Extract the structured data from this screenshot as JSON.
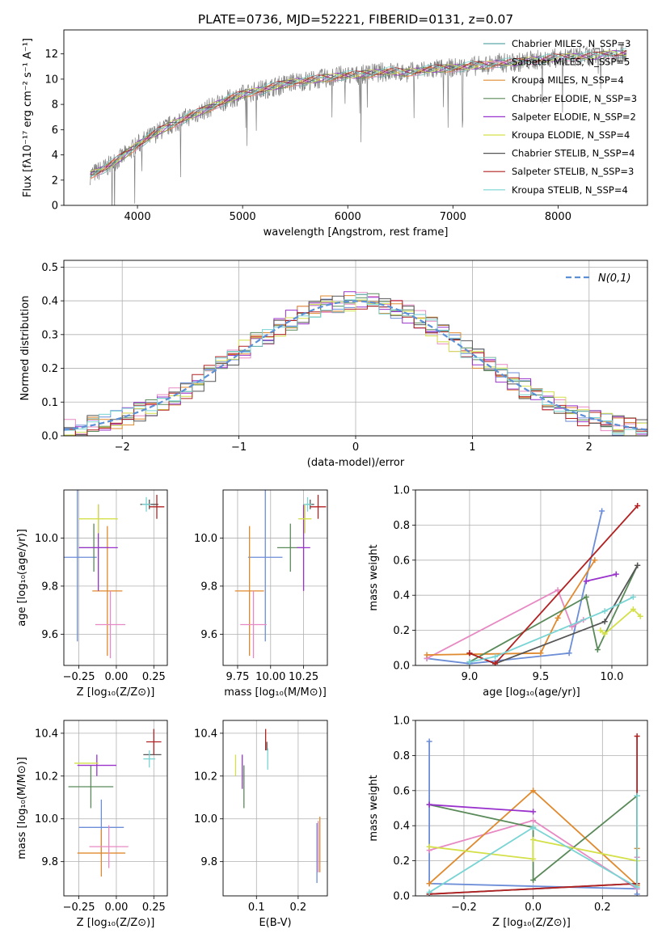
{
  "chart_data": [
    {
      "id": "spectrum",
      "type": "line",
      "title": "PLATE=0736, MJD=52221, FIBERID=0131, z=0.07",
      "xlabel": "wavelength [Angstrom, rest frame]",
      "ylabel": "Flux [fλ10⁻¹⁷ erg cm⁻² s⁻¹ A⁻¹]",
      "xlim": [
        3300,
        8850
      ],
      "ylim": [
        0,
        13.9
      ],
      "xticks": [
        4000,
        5000,
        6000,
        7000,
        8000
      ],
      "yticks": [
        0,
        2,
        4,
        6,
        8,
        10,
        12
      ],
      "legend_loc": "upper right",
      "observed_color": "#808080",
      "observed": {
        "x": [
          3550,
          3700,
          3850,
          4000,
          4150,
          4300,
          4450,
          4600,
          4750,
          4900,
          5050,
          5200,
          5350,
          5500,
          5650,
          5800,
          5950,
          6100,
          6250,
          6400,
          6550,
          6700,
          6850,
          7000,
          7150,
          7300,
          7450,
          7600,
          7750,
          7900,
          8050,
          8200,
          8350,
          8500,
          8650
        ],
        "y": [
          2.4,
          3.0,
          3.8,
          4.8,
          5.6,
          6.3,
          6.9,
          7.4,
          8.0,
          8.5,
          8.9,
          9.2,
          9.5,
          9.8,
          9.9,
          10.1,
          10.3,
          10.3,
          10.5,
          10.6,
          10.5,
          10.7,
          10.8,
          10.9,
          11.0,
          11.1,
          11.3,
          11.3,
          11.5,
          11.6,
          11.7,
          11.8,
          11.8,
          12.0,
          12.1
        ]
      },
      "series": [
        {
          "name": "Chabrier MILES, N_SSP=3",
          "color": "#5fa8a8"
        },
        {
          "name": "Salpeter MILES, N_SSP=5",
          "color": "#e78ac3"
        },
        {
          "name": "Kroupa MILES, N_SSP=4",
          "color": "#e08a2f"
        },
        {
          "name": "Chabrier ELODIE, N_SSP=3",
          "color": "#5a8a5a"
        },
        {
          "name": "Salpeter ELODIE, N_SSP=2",
          "color": "#9932cc"
        },
        {
          "name": "Kroupa ELODIE, N_SSP=4",
          "color": "#d4e04a"
        },
        {
          "name": "Chabrier STELIB, N_SSP=4",
          "color": "#555555"
        },
        {
          "name": "Salpeter STELIB, N_SSP=3",
          "color": "#b22222"
        },
        {
          "name": "Kroupa STELIB, N_SSP=4",
          "color": "#7ad4d4"
        }
      ]
    },
    {
      "id": "residuals",
      "type": "line",
      "xlabel": "(data-model)/error",
      "ylabel": "Normed distribution",
      "xlim": [
        -2.5,
        2.5
      ],
      "ylim": [
        0,
        0.52
      ],
      "xticks": [
        -2,
        -1,
        0,
        1,
        2
      ],
      "yticks": [
        0.0,
        0.1,
        0.2,
        0.3,
        0.4,
        0.5
      ],
      "grid": true,
      "legend": "N(0,1)",
      "legend_loc": "upper right",
      "normal_curve": {
        "mean": 0,
        "sigma": 1,
        "color": "#5b8fd6"
      },
      "hist_colors": [
        "#6c8ed8",
        "#e78ac3",
        "#e08a2f",
        "#5a8a5a",
        "#9932cc",
        "#d4e04a",
        "#555555",
        "#b22222",
        "#7ad4d4"
      ]
    },
    {
      "id": "z_age",
      "type": "scatter",
      "xlabel": "Z [log₁₀(Z/Z⊙)]",
      "ylabel": "age  [log₁₀(age/yr)]",
      "xlim": [
        -0.35,
        0.34
      ],
      "ylim": [
        9.47,
        10.2
      ],
      "xticks": [
        -0.25,
        0.0,
        0.25
      ],
      "yticks": [
        9.6,
        9.8,
        10.0
      ],
      "grid": true,
      "points": [
        {
          "x": -0.26,
          "y": 9.92,
          "xerr": 0.13,
          "yerr": 0.35,
          "color": "#6c8ed8"
        },
        {
          "x": -0.06,
          "y": 9.78,
          "xerr": 0.1,
          "yerr": 0.27,
          "color": "#e08a2f"
        },
        {
          "x": -0.04,
          "y": 9.64,
          "xerr": 0.1,
          "yerr": 0.14,
          "color": "#e78ac3"
        },
        {
          "x": -0.15,
          "y": 9.96,
          "xerr": 0.1,
          "yerr": 0.1,
          "color": "#5a8a5a"
        },
        {
          "x": -0.12,
          "y": 9.96,
          "xerr": 0.13,
          "yerr": 0.18,
          "color": "#9932cc"
        },
        {
          "x": -0.12,
          "y": 10.08,
          "xerr": 0.13,
          "yerr": 0.06,
          "color": "#d4e04a"
        },
        {
          "x": 0.22,
          "y": 10.14,
          "xerr": 0.06,
          "yerr": 0.02,
          "color": "#555555"
        },
        {
          "x": 0.27,
          "y": 10.13,
          "xerr": 0.05,
          "yerr": 0.05,
          "color": "#b22222"
        },
        {
          "x": 0.2,
          "y": 10.14,
          "xerr": 0.03,
          "yerr": 0.03,
          "color": "#7ad4d4"
        }
      ]
    },
    {
      "id": "mass_age",
      "type": "scatter",
      "xlabel": "mass [log₁₀(M/M⊙)]",
      "ylabel": "",
      "xlim": [
        9.64,
        10.43
      ],
      "ylim": [
        9.47,
        10.2
      ],
      "xticks": [
        9.75,
        10.0,
        10.25
      ],
      "xticklabels": [
        "9.75",
        "10.00",
        "10.25"
      ],
      "yticks": [
        9.6,
        9.8,
        10.0
      ],
      "grid": true,
      "points": [
        {
          "x": 9.96,
          "y": 9.92,
          "xerr": 0.13,
          "yerr": 0.35,
          "color": "#6c8ed8"
        },
        {
          "x": 9.84,
          "y": 9.78,
          "xerr": 0.11,
          "yerr": 0.27,
          "color": "#e08a2f"
        },
        {
          "x": 9.87,
          "y": 9.64,
          "xerr": 0.1,
          "yerr": 0.14,
          "color": "#e78ac3"
        },
        {
          "x": 10.15,
          "y": 9.96,
          "xerr": 0.1,
          "yerr": 0.1,
          "color": "#5a8a5a"
        },
        {
          "x": 10.25,
          "y": 9.96,
          "xerr": 0.05,
          "yerr": 0.18,
          "color": "#9932cc"
        },
        {
          "x": 10.26,
          "y": 10.08,
          "xerr": 0.05,
          "yerr": 0.06,
          "color": "#d4e04a"
        },
        {
          "x": 10.3,
          "y": 10.14,
          "xerr": 0.03,
          "yerr": 0.02,
          "color": "#555555"
        },
        {
          "x": 10.36,
          "y": 10.13,
          "xerr": 0.06,
          "yerr": 0.05,
          "color": "#b22222"
        },
        {
          "x": 10.28,
          "y": 10.14,
          "xerr": 0.03,
          "yerr": 0.03,
          "color": "#7ad4d4"
        }
      ]
    },
    {
      "id": "age_weight",
      "type": "line",
      "xlabel": "age  [log₁₀(age/yr)]",
      "ylabel": "mass weight",
      "xlim": [
        8.62,
        10.25
      ],
      "ylim": [
        0.0,
        1.0
      ],
      "xticks": [
        9.0,
        9.5,
        10.0
      ],
      "yticks": [
        0.0,
        0.2,
        0.4,
        0.6,
        0.8,
        1.0
      ],
      "grid": true,
      "series": [
        {
          "color": "#6c8ed8",
          "x": [
            8.7,
            9.0,
            9.7,
            9.93
          ],
          "y": [
            0.04,
            0.01,
            0.07,
            0.88
          ]
        },
        {
          "color": "#e78ac3",
          "x": [
            8.7,
            9.62,
            9.72,
            9.8
          ],
          "y": [
            0.04,
            0.43,
            0.22,
            0.26
          ]
        },
        {
          "color": "#e08a2f",
          "x": [
            8.7,
            9.5,
            9.62,
            9.88
          ],
          "y": [
            0.06,
            0.07,
            0.27,
            0.6
          ]
        },
        {
          "color": "#5a8a5a",
          "x": [
            9.0,
            9.82,
            9.9,
            10.18
          ],
          "y": [
            0.02,
            0.39,
            0.09,
            0.57
          ]
        },
        {
          "color": "#9932cc",
          "x": [
            9.82,
            10.03
          ],
          "y": [
            0.48,
            0.52
          ]
        },
        {
          "color": "#d4e04a",
          "x": [
            9.92,
            9.95,
            10.15,
            10.2
          ],
          "y": [
            0.2,
            0.18,
            0.32,
            0.28
          ]
        },
        {
          "color": "#555555",
          "x": [
            9.0,
            9.18,
            9.95,
            10.18
          ],
          "y": [
            0.07,
            0.01,
            0.25,
            0.57
          ]
        },
        {
          "color": "#b22222",
          "x": [
            9.0,
            9.18,
            10.18
          ],
          "y": [
            0.07,
            0.01,
            0.91
          ]
        },
        {
          "color": "#7ad4d4",
          "x": [
            9.0,
            9.18,
            9.95,
            10.15
          ],
          "y": [
            0.02,
            0.05,
            0.31,
            0.39
          ]
        }
      ]
    },
    {
      "id": "z_mass",
      "type": "scatter",
      "xlabel": "Z [log₁₀(Z/Z⊙)]",
      "ylabel": "mass [log₁₀(M/M⊙)]",
      "xlim": [
        -0.35,
        0.34
      ],
      "ylim": [
        9.64,
        10.46
      ],
      "xticks": [
        -0.25,
        0.0,
        0.25
      ],
      "yticks": [
        9.8,
        10.0,
        10.2,
        10.4
      ],
      "grid": true,
      "points": [
        {
          "x": -0.1,
          "y": 9.96,
          "xerr": 0.15,
          "yerr": 0.13,
          "color": "#6c8ed8"
        },
        {
          "x": -0.1,
          "y": 9.84,
          "xerr": 0.16,
          "yerr": 0.11,
          "color": "#e08a2f"
        },
        {
          "x": -0.05,
          "y": 9.87,
          "xerr": 0.13,
          "yerr": 0.1,
          "color": "#e78ac3"
        },
        {
          "x": -0.17,
          "y": 10.15,
          "xerr": 0.15,
          "yerr": 0.1,
          "color": "#5a8a5a"
        },
        {
          "x": -0.13,
          "y": 10.25,
          "xerr": 0.13,
          "yerr": 0.05,
          "color": "#9932cc"
        },
        {
          "x": -0.2,
          "y": 10.26,
          "xerr": 0.08,
          "yerr": 0.0,
          "color": "#d4e04a"
        },
        {
          "x": 0.24,
          "y": 10.3,
          "xerr": 0.06,
          "yerr": 0.0,
          "color": "#555555"
        },
        {
          "x": 0.25,
          "y": 10.36,
          "xerr": 0.05,
          "yerr": 0.06,
          "color": "#b22222"
        },
        {
          "x": 0.22,
          "y": 10.28,
          "xerr": 0.04,
          "yerr": 0.04,
          "color": "#7ad4d4"
        }
      ]
    },
    {
      "id": "ebv_mass",
      "type": "scatter",
      "xlabel": "E(B-V)",
      "ylabel": "",
      "xlim": [
        0.02,
        0.27
      ],
      "ylim": [
        9.64,
        10.46
      ],
      "xticks": [
        0.1,
        0.2
      ],
      "yticks": [
        9.8,
        10.0,
        10.2,
        10.4
      ],
      "grid": true,
      "points": [
        {
          "x": 0.245,
          "y": 9.84,
          "yerr": 0.14,
          "color": "#6c8ed8"
        },
        {
          "x": 0.252,
          "y": 9.88,
          "yerr": 0.13,
          "color": "#e08a2f"
        },
        {
          "x": 0.248,
          "y": 9.87,
          "yerr": 0.12,
          "color": "#e78ac3"
        },
        {
          "x": 0.07,
          "y": 10.15,
          "yerr": 0.1,
          "color": "#5a8a5a"
        },
        {
          "x": 0.066,
          "y": 10.22,
          "yerr": 0.08,
          "color": "#9932cc"
        },
        {
          "x": 0.05,
          "y": 10.25,
          "yerr": 0.05,
          "color": "#d4e04a"
        },
        {
          "x": 0.125,
          "y": 10.34,
          "yerr": 0.02,
          "color": "#555555"
        },
        {
          "x": 0.122,
          "y": 10.37,
          "yerr": 0.05,
          "color": "#b22222"
        },
        {
          "x": 0.127,
          "y": 10.28,
          "yerr": 0.05,
          "color": "#7ad4d4"
        }
      ]
    },
    {
      "id": "z_weight",
      "type": "line",
      "xlabel": "Z [log₁₀(Z/Z⊙)]",
      "ylabel": "mass weight",
      "xlim": [
        -0.34,
        0.33
      ],
      "ylim": [
        0.0,
        1.0
      ],
      "xticks": [
        -0.2,
        0.0,
        0.2
      ],
      "yticks": [
        0.0,
        0.2,
        0.4,
        0.6,
        0.8,
        1.0
      ],
      "grid": true,
      "series": [
        {
          "color": "#6c8ed8",
          "x": [
            -0.3,
            -0.3,
            0.3,
            0.3
          ],
          "y": [
            0.88,
            0.07,
            0.04,
            0.01
          ]
        },
        {
          "color": "#e78ac3",
          "x": [
            -0.3,
            0.0,
            0.3,
            0.3
          ],
          "y": [
            0.26,
            0.43,
            0.04,
            0.22
          ]
        },
        {
          "color": "#e08a2f",
          "x": [
            -0.3,
            0.0,
            0.3,
            0.3
          ],
          "y": [
            0.07,
            0.6,
            0.06,
            0.27
          ]
        },
        {
          "color": "#5a8a5a",
          "x": [
            -0.3,
            0.0,
            0.0,
            0.3
          ],
          "y": [
            0.52,
            0.39,
            0.09,
            0.57
          ]
        },
        {
          "color": "#9932cc",
          "x": [
            -0.3,
            0.0
          ],
          "y": [
            0.52,
            0.48
          ]
        },
        {
          "color": "#d4e04a",
          "x": [
            -0.3,
            0.0,
            0.0,
            0.3
          ],
          "y": [
            0.28,
            0.21,
            0.32,
            0.2
          ]
        },
        {
          "color": "#555555",
          "x": [
            -0.3,
            0.3,
            0.3
          ],
          "y": [
            0.01,
            0.07,
            0.57
          ]
        },
        {
          "color": "#b22222",
          "x": [
            -0.3,
            0.3,
            0.3
          ],
          "y": [
            0.01,
            0.07,
            0.91
          ]
        },
        {
          "color": "#7ad4d4",
          "x": [
            -0.3,
            0.0,
            0.3,
            0.3
          ],
          "y": [
            0.02,
            0.39,
            0.05,
            0.57
          ]
        }
      ]
    }
  ]
}
